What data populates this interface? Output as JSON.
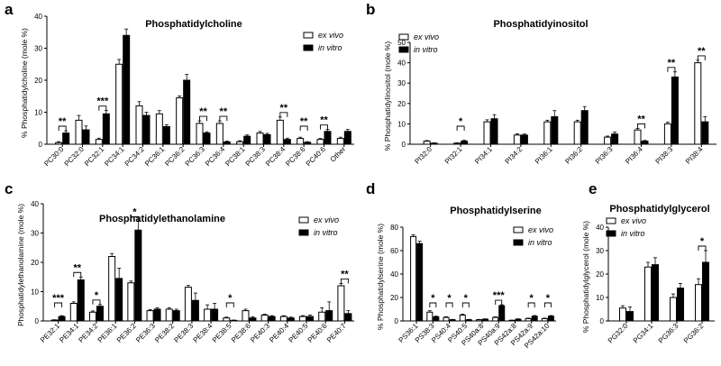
{
  "chart_data": [
    {
      "id": "a",
      "panel_label": "a",
      "type": "bar",
      "title": "Phosphatidylcholine",
      "ylabel": "% Phosphatidylcholine (mole %)",
      "ylim": [
        0,
        40
      ],
      "yticks": [
        0,
        10,
        20,
        30,
        40
      ],
      "categories": [
        "PC30:0",
        "PC32:0",
        "PC32:1",
        "PC34:1",
        "PC34:2",
        "PC36:1",
        "PC36:2",
        "PC36:3",
        "PC36:4",
        "PC38:1",
        "PC38:3",
        "PC38:4",
        "PC38:6",
        "PC40:6",
        "Other"
      ],
      "series": [
        {
          "name": "ex vivo",
          "values": [
            0.5,
            7.5,
            1.5,
            25,
            12,
            9.5,
            14.5,
            6.5,
            6.5,
            0.8,
            3.5,
            7.5,
            1.8,
            1.5,
            1.8
          ],
          "errors": [
            0.3,
            1.5,
            0.4,
            1.5,
            1.3,
            1.0,
            0.6,
            0.8,
            0.8,
            0.3,
            0.5,
            1.0,
            0.4,
            0.3,
            0.4
          ]
        },
        {
          "name": "in vitro",
          "values": [
            3.5,
            4.5,
            9.5,
            34,
            9,
            5.5,
            20,
            3.5,
            0.7,
            2.5,
            3,
            1.5,
            0.6,
            4,
            4
          ],
          "errors": [
            0.7,
            1.2,
            1.0,
            2.0,
            1.0,
            0.6,
            1.8,
            0.4,
            0.3,
            0.4,
            0.4,
            0.4,
            0.2,
            0.6,
            0.6
          ]
        }
      ],
      "legend": [
        "ex vivo",
        "in vitro"
      ],
      "legend_position": "top-right",
      "significance": [
        {
          "category": 0,
          "label": "**"
        },
        {
          "category": 2,
          "label": "***"
        },
        {
          "category": 7,
          "label": "**"
        },
        {
          "category": 8,
          "label": "**"
        },
        {
          "category": 11,
          "label": "**"
        },
        {
          "category": 12,
          "label": "**"
        },
        {
          "category": 13,
          "label": "**"
        }
      ]
    },
    {
      "id": "b",
      "panel_label": "b",
      "type": "bar",
      "title": "Phosphatidyinositol",
      "ylabel": "% Phosphatidylinositol (mole %)",
      "ylim": [
        0,
        50
      ],
      "yticks": [
        0,
        10,
        20,
        30,
        40,
        50
      ],
      "categories": [
        "PI32:0",
        "PI32:1",
        "PI34:1",
        "PI34:2",
        "PI36:1",
        "PI36:2",
        "PI36:3",
        "PI36:4",
        "PI38:3",
        "PI38:4"
      ],
      "series": [
        {
          "name": "ex vivo",
          "values": [
            1.5,
            0.5,
            11,
            4.5,
            11,
            11,
            3.5,
            7,
            10,
            40
          ],
          "errors": [
            0.3,
            0.2,
            1.0,
            0.6,
            0.8,
            0.8,
            0.5,
            0.8,
            0.8,
            1.2
          ]
        },
        {
          "name": "in vitro",
          "values": [
            0.5,
            1.5,
            12.5,
            4.5,
            13.5,
            16.5,
            5,
            1.5,
            33,
            11
          ],
          "errors": [
            0.2,
            0.5,
            2.0,
            0.5,
            3.0,
            2.0,
            1.0,
            0.4,
            2.5,
            2.5
          ]
        }
      ],
      "legend": [
        "ex vivo",
        "in vitro"
      ],
      "legend_position": "top-left",
      "significance": [
        {
          "category": 1,
          "label": "*"
        },
        {
          "category": 7,
          "label": "**"
        },
        {
          "category": 8,
          "label": "**"
        },
        {
          "category": 9,
          "label": "**"
        }
      ]
    },
    {
      "id": "c",
      "panel_label": "c",
      "type": "bar",
      "title": "Phosphatidylethanolamine",
      "ylabel": "Phosphatidylethanolamine (mole %)",
      "ylim": [
        0,
        40
      ],
      "yticks": [
        0,
        10,
        20,
        30,
        40
      ],
      "categories": [
        "PE32:1",
        "PE34:1",
        "PE34:2",
        "PE36:1",
        "PE36:2",
        "PE36:3",
        "PE38:2",
        "PE38:3",
        "PE38:4",
        "PE38:5",
        "PE38:6",
        "PE40:3",
        "PE40:4",
        "PE40:5",
        "PE40:6",
        "PE40:7"
      ],
      "series": [
        {
          "name": "ex vivo",
          "values": [
            0.3,
            6,
            3,
            22,
            13,
            3.5,
            4,
            11.5,
            4,
            1,
            3.5,
            2,
            1.5,
            1.5,
            3,
            12
          ],
          "errors": [
            0.1,
            0.5,
            0.4,
            1.0,
            0.6,
            0.4,
            0.5,
            0.6,
            1.5,
            0.3,
            0.5,
            0.3,
            0.3,
            0.3,
            1.5,
            0.8
          ]
        },
        {
          "name": "in vitro",
          "values": [
            1.5,
            14,
            5,
            14.5,
            31,
            4,
            3.5,
            7,
            4,
            0.2,
            1,
            1.5,
            1,
            1.5,
            3.5,
            2.5
          ],
          "errors": [
            0.3,
            1.0,
            0.6,
            3.5,
            3.0,
            0.5,
            0.5,
            2.5,
            2.0,
            0.1,
            0.4,
            0.3,
            0.3,
            0.5,
            3.0,
            1.0
          ]
        }
      ],
      "legend": [
        "ex vivo",
        "in vitro"
      ],
      "legend_position": "top-right",
      "significance": [
        {
          "category": 0,
          "label": "***"
        },
        {
          "category": 1,
          "label": "**"
        },
        {
          "category": 2,
          "label": "*"
        },
        {
          "category": 4,
          "label": "*"
        },
        {
          "category": 9,
          "label": "*"
        },
        {
          "category": 15,
          "label": "**"
        }
      ]
    },
    {
      "id": "d",
      "panel_label": "d",
      "type": "bar",
      "title": "Phosphatidylserine",
      "ylabel": "% Phosphatidylserine (mole %)",
      "ylim": [
        0,
        80
      ],
      "yticks": [
        0,
        20,
        40,
        60,
        80
      ],
      "categories": [
        "PS36:1",
        "PS38:3",
        "PS40:4",
        "PS40:5",
        "PS40a:8",
        "PS40a:9",
        "PS42a:8",
        "PS42a:9",
        "PS42a:10"
      ],
      "series": [
        {
          "name": "ex vivo",
          "values": [
            72,
            7.5,
            3,
            5,
            1,
            3,
            0.5,
            2,
            2
          ],
          "errors": [
            1.5,
            1.2,
            0.6,
            0.8,
            0.3,
            0.5,
            0.2,
            0.4,
            0.4
          ]
        },
        {
          "name": "in vitro",
          "values": [
            66,
            3.5,
            1,
            1,
            1.5,
            13,
            1.5,
            4,
            4
          ],
          "errors": [
            2.0,
            0.6,
            0.3,
            0.3,
            0.3,
            0.8,
            0.3,
            0.6,
            0.6
          ]
        }
      ],
      "legend": [
        "ex vivo",
        "in vitro"
      ],
      "legend_position": "top-right",
      "significance": [
        {
          "category": 1,
          "label": "*"
        },
        {
          "category": 2,
          "label": "*"
        },
        {
          "category": 3,
          "label": "*"
        },
        {
          "category": 5,
          "label": "***"
        },
        {
          "category": 7,
          "label": "*"
        },
        {
          "category": 8,
          "label": "*"
        }
      ]
    },
    {
      "id": "e",
      "panel_label": "e",
      "type": "bar",
      "title": "Phosphatidylglycerol",
      "ylabel": "% Phosphatidylglycerol (mole %)",
      "ylim": [
        0,
        40
      ],
      "yticks": [
        0,
        10,
        20,
        30,
        40
      ],
      "categories": [
        "PG32:0",
        "PG34:1",
        "PG36:3",
        "PG36:2"
      ],
      "series": [
        {
          "name": "ex vivo",
          "values": [
            5.5,
            23,
            10,
            15.5
          ],
          "errors": [
            1.0,
            2.0,
            1.5,
            2.5
          ]
        },
        {
          "name": "in vitro",
          "values": [
            4,
            24,
            14,
            25
          ],
          "errors": [
            2.0,
            3.0,
            2.0,
            5.0
          ]
        }
      ],
      "legend": [
        "ex vivo",
        "in vitro"
      ],
      "legend_position": "top-left",
      "significance": [
        {
          "category": 3,
          "label": "*"
        }
      ]
    }
  ]
}
